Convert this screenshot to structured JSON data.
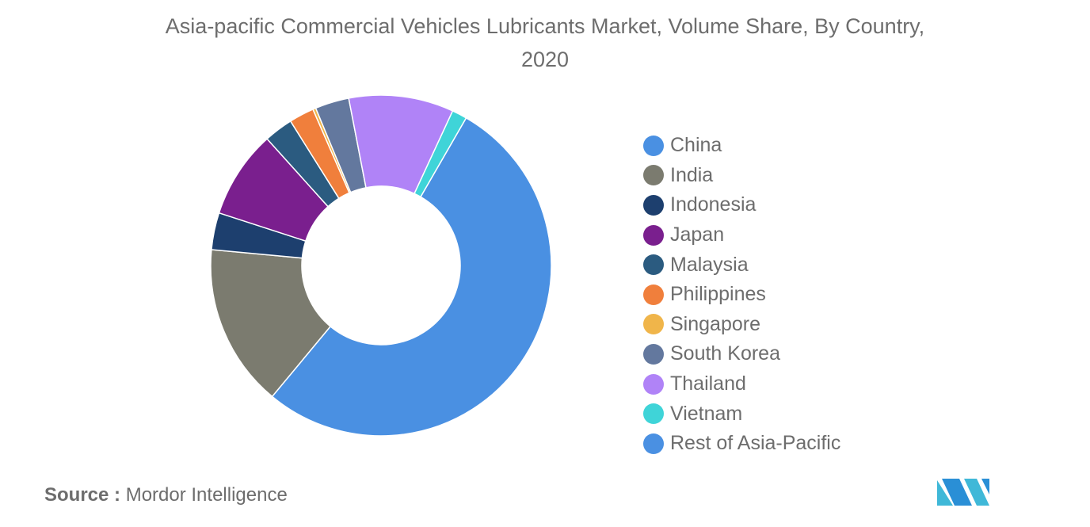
{
  "title": "Asia-pacific Commercial Vehicles Lubricants Market, Volume Share, By Country, 2020",
  "source": {
    "label": "Source :",
    "value": "Mordor Intelligence"
  },
  "chart_data": {
    "type": "pie",
    "title": "Asia-pacific Commercial Vehicles Lubricants Market, Volume Share, By Country, 2020",
    "legend_position": "right",
    "donut": true,
    "categories": [
      "China",
      "India",
      "Indonesia",
      "Japan",
      "Malaysia",
      "Philippines",
      "Singapore",
      "South Korea",
      "Thailand",
      "Vietnam",
      "Rest of Asia-Pacific"
    ],
    "values": [
      55.6,
      16.3,
      3.7,
      8.8,
      2.9,
      2.5,
      0.3,
      3.4,
      10.5,
      1.5,
      0
    ],
    "colors": [
      "#4a90e2",
      "#7b7b6f",
      "#1d3f6e",
      "#7a1f8e",
      "#2b5b80",
      "#f07f3c",
      "#f0b54a",
      "#63789e",
      "#b083f7",
      "#3fd4d8",
      "#4a90e2"
    ]
  }
}
